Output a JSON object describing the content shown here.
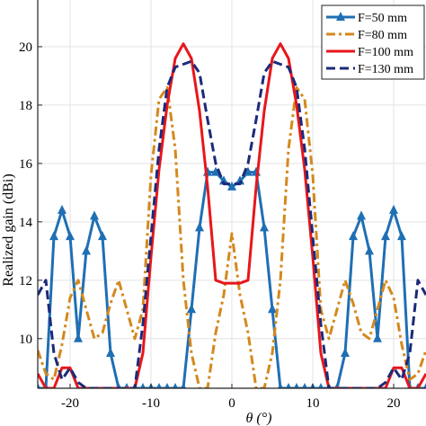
{
  "chart_data": {
    "type": "line",
    "xlabel": "θ (°)",
    "ylabel": "Realized gain (dBi)",
    "xlim": [
      -24,
      24
    ],
    "ylim": [
      8.3,
      21.6
    ],
    "xticks": [
      -20,
      -10,
      0,
      10,
      20
    ],
    "yticks": [
      10,
      12,
      14,
      16,
      18,
      20
    ],
    "grid": true,
    "legend_position": "top-right",
    "series": [
      {
        "name": "F=50 mm",
        "color": "#1f6fb4",
        "dash": "solid",
        "marker": "triangle",
        "x": [
          -24,
          -23,
          -22,
          -21,
          -20,
          -19,
          -18,
          -17,
          -16,
          -15,
          -14,
          -13,
          -12,
          -11,
          -10,
          -9,
          -8,
          -7,
          -6,
          -5,
          -4,
          -3,
          -2,
          -1,
          0,
          1,
          2,
          3,
          4,
          5,
          6,
          7,
          8,
          9,
          10,
          11,
          12,
          13,
          14,
          15,
          16,
          17,
          18,
          19,
          20,
          21,
          22,
          23,
          24
        ],
        "y": [
          8.3,
          8.3,
          13.5,
          14.4,
          13.5,
          10.0,
          13.0,
          14.2,
          13.5,
          9.5,
          8.3,
          8.3,
          8.3,
          8.3,
          8.3,
          8.3,
          8.3,
          8.3,
          8.3,
          11.0,
          13.8,
          15.7,
          15.7,
          15.4,
          15.2,
          15.4,
          15.7,
          15.7,
          13.8,
          11.0,
          8.3,
          8.3,
          8.3,
          8.3,
          8.3,
          8.3,
          8.3,
          8.3,
          9.5,
          13.5,
          14.2,
          13.0,
          10.0,
          13.5,
          14.4,
          13.5,
          8.3,
          8.3,
          8.3
        ]
      },
      {
        "name": "F=80 mm",
        "color": "#d4891c",
        "dash": "dashdot",
        "x": [
          -24,
          -23,
          -22,
          -21,
          -20,
          -19,
          -18,
          -17,
          -16,
          -15,
          -14,
          -13,
          -12,
          -11,
          -10,
          -9,
          -8,
          -7,
          -6,
          -5,
          -4,
          -3,
          -2,
          -1,
          0,
          1,
          2,
          3,
          4,
          5,
          6,
          7,
          8,
          9,
          10,
          11,
          12,
          13,
          14,
          15,
          16,
          17,
          18,
          19,
          20,
          21,
          22,
          23,
          24
        ],
        "y": [
          9.6,
          8.8,
          8.6,
          9.8,
          11.4,
          12.0,
          11.0,
          10.0,
          10.2,
          11.2,
          12.0,
          11.0,
          10.0,
          11.0,
          15.6,
          18.2,
          18.6,
          16.5,
          12.0,
          9.5,
          8.3,
          8.3,
          10.2,
          11.5,
          13.6,
          11.5,
          10.2,
          8.3,
          8.3,
          9.5,
          12.0,
          16.5,
          18.6,
          18.2,
          15.6,
          11.0,
          10.0,
          11.0,
          12.0,
          11.2,
          10.2,
          10.0,
          11.0,
          12.0,
          11.4,
          9.8,
          8.6,
          8.8,
          9.6
        ]
      },
      {
        "name": "F=100 mm",
        "color": "#e8161b",
        "dash": "solid",
        "x": [
          -24,
          -23,
          -22,
          -21,
          -20,
          -19,
          -18,
          -17,
          -16,
          -15,
          -14,
          -13,
          -12,
          -11,
          -10,
          -9,
          -8,
          -7,
          -6,
          -5,
          -4,
          -3,
          -2,
          -1,
          0,
          1,
          2,
          3,
          4,
          5,
          6,
          7,
          8,
          9,
          10,
          11,
          12,
          13,
          14,
          15,
          16,
          17,
          18,
          19,
          20,
          21,
          22,
          23,
          24
        ],
        "y": [
          8.8,
          8.3,
          8.3,
          9.0,
          9.0,
          8.3,
          8.3,
          8.3,
          8.3,
          8.3,
          8.3,
          8.3,
          8.3,
          9.5,
          12.8,
          15.8,
          18.0,
          19.6,
          20.1,
          19.6,
          17.8,
          15.2,
          12.0,
          11.9,
          11.9,
          11.9,
          12.0,
          15.2,
          17.8,
          19.6,
          20.1,
          19.6,
          18.0,
          15.8,
          12.8,
          9.5,
          8.3,
          8.3,
          8.3,
          8.3,
          8.3,
          8.3,
          8.3,
          8.3,
          9.0,
          9.0,
          8.3,
          8.3,
          8.8
        ]
      },
      {
        "name": "F=130 mm",
        "color": "#1c2a7a",
        "dash": "dashed",
        "x": [
          -24,
          -23,
          -22,
          -21,
          -20,
          -19,
          -18,
          -17,
          -16,
          -15,
          -14,
          -13,
          -12,
          -11,
          -10,
          -9,
          -8,
          -7,
          -6,
          -5,
          -4,
          -3,
          -2,
          -1,
          0,
          1,
          2,
          3,
          4,
          5,
          6,
          7,
          8,
          9,
          10,
          11,
          12,
          13,
          14,
          15,
          16,
          17,
          18,
          19,
          20,
          21,
          22,
          23,
          24
        ],
        "y": [
          11.5,
          12.0,
          9.5,
          8.6,
          9.0,
          8.5,
          8.3,
          8.3,
          8.3,
          8.3,
          8.3,
          8.3,
          8.3,
          10.5,
          13.5,
          16.5,
          18.6,
          19.3,
          19.4,
          19.5,
          19.1,
          17.5,
          16.0,
          15.3,
          15.3,
          15.3,
          16.0,
          17.5,
          19.1,
          19.5,
          19.4,
          19.3,
          18.6,
          16.5,
          13.5,
          10.5,
          8.3,
          8.3,
          8.3,
          8.3,
          8.3,
          8.3,
          8.3,
          8.5,
          9.0,
          8.6,
          9.5,
          12.0,
          11.5
        ]
      }
    ]
  }
}
